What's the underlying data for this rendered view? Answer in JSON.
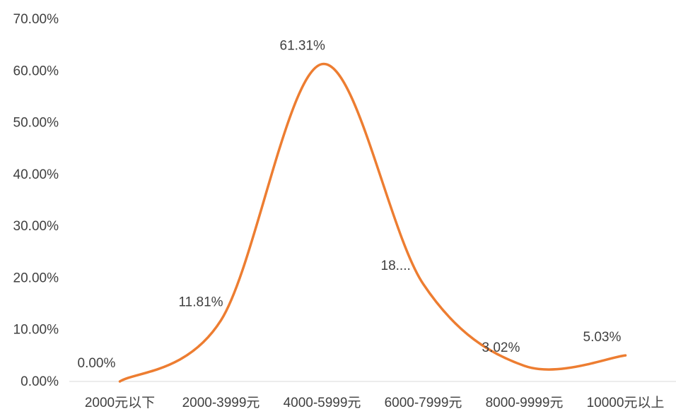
{
  "chart_data": {
    "type": "line",
    "smooth": true,
    "categories": [
      "2000元以下",
      "2000-3999元",
      "4000-5999元",
      "6000-7999元",
      "8000-9999元",
      "10000元以上"
    ],
    "series": [
      {
        "values": [
          0.0,
          11.81,
          61.31,
          18.83,
          3.02,
          5.03
        ],
        "data_labels": [
          "0.00%",
          "11.81%",
          "61.31%",
          "18....",
          "3.02%",
          "5.03%"
        ],
        "color": "#ED7D31"
      }
    ],
    "y_tick_labels": [
      "0.00%",
      "10.00%",
      "20.00%",
      "30.00%",
      "40.00%",
      "50.00%",
      "60.00%",
      "70.00%"
    ],
    "ylim": [
      0,
      70
    ],
    "y_unit": "%",
    "grid": false,
    "legend": "none"
  }
}
